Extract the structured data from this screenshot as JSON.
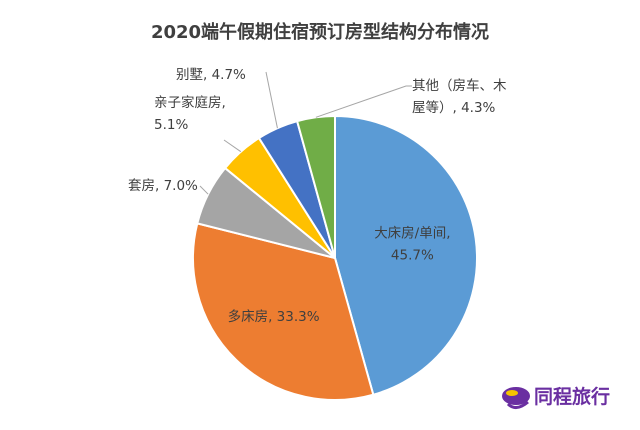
{
  "chart_data": {
    "type": "pie",
    "title": "2020端午假期住宿预订房型结构分布情况",
    "categories": [
      "大床房/单间",
      "多床房",
      "套房",
      "亲子家庭房",
      "别墅",
      "其他（房车、木屋等）"
    ],
    "values": [
      45.7,
      33.3,
      7.0,
      5.1,
      4.7,
      4.3
    ],
    "colors": [
      "#5b9bd5",
      "#ed7d31",
      "#a5a5a5",
      "#ffc000",
      "#4472c4",
      "#70ad47"
    ],
    "labels": [
      {
        "lines": [
          "大床房/单间,",
          "45.7%"
        ]
      },
      {
        "lines": [
          "多床房, 33.3%"
        ]
      },
      {
        "lines": [
          "套房, 7.0%"
        ]
      },
      {
        "lines": [
          "亲子家庭房,",
          "5.1%"
        ]
      },
      {
        "lines": [
          "别墅, 4.7%"
        ]
      },
      {
        "lines": [
          "其他（房车、木",
          "屋等）, 4.3%"
        ]
      }
    ],
    "legend": "none"
  },
  "brand": {
    "name": "同程旅行",
    "color": "#6a2fa1",
    "icon": "tongcheng-logo-icon"
  }
}
